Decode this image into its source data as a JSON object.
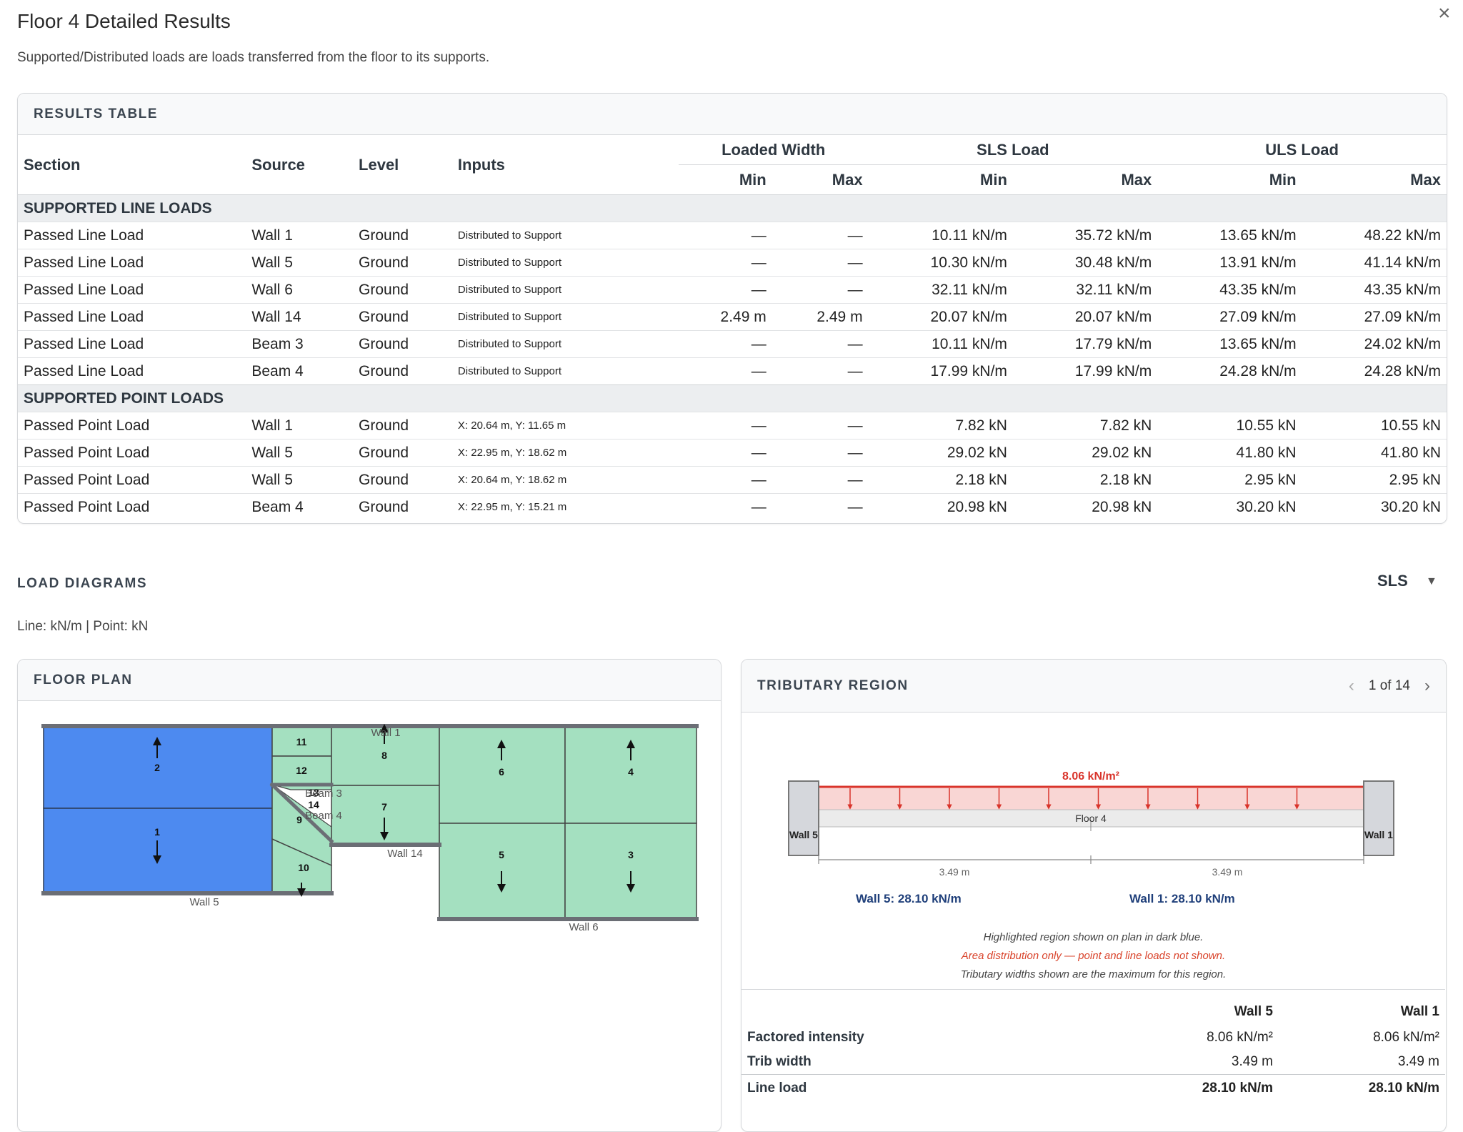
{
  "header": {
    "title": "Floor 4 Detailed Results",
    "close_glyph": "×",
    "subtitle": "Supported/Distributed loads are loads transferred from the floor to its supports."
  },
  "results": {
    "heading": "RESULTS TABLE",
    "columns": {
      "section": "Section",
      "source": "Source",
      "level": "Level",
      "inputs": "Inputs",
      "loaded_width": "Loaded Width",
      "sls_load": "SLS Load",
      "uls_load": "ULS Load",
      "min": "Min",
      "max": "Max"
    },
    "groups": [
      {
        "title": "SUPPORTED LINE LOADS",
        "rows": [
          [
            "Passed Line Load",
            "Wall 1",
            "Ground",
            "Distributed to Support",
            "—",
            "—",
            "10.11 kN/m",
            "35.72 kN/m",
            "13.65 kN/m",
            "48.22 kN/m"
          ],
          [
            "Passed Line Load",
            "Wall 5",
            "Ground",
            "Distributed to Support",
            "—",
            "—",
            "10.30 kN/m",
            "30.48 kN/m",
            "13.91 kN/m",
            "41.14 kN/m"
          ],
          [
            "Passed Line Load",
            "Wall 6",
            "Ground",
            "Distributed to Support",
            "—",
            "—",
            "32.11 kN/m",
            "32.11 kN/m",
            "43.35 kN/m",
            "43.35 kN/m"
          ],
          [
            "Passed Line Load",
            "Wall 14",
            "Ground",
            "Distributed to Support",
            "2.49 m",
            "2.49 m",
            "20.07 kN/m",
            "20.07 kN/m",
            "27.09 kN/m",
            "27.09 kN/m"
          ],
          [
            "Passed Line Load",
            "Beam 3",
            "Ground",
            "Distributed to Support",
            "—",
            "—",
            "10.11 kN/m",
            "17.79 kN/m",
            "13.65 kN/m",
            "24.02 kN/m"
          ],
          [
            "Passed Line Load",
            "Beam 4",
            "Ground",
            "Distributed to Support",
            "—",
            "—",
            "17.99 kN/m",
            "17.99 kN/m",
            "24.28 kN/m",
            "24.28 kN/m"
          ]
        ]
      },
      {
        "title": "SUPPORTED POINT LOADS",
        "rows": [
          [
            "Passed Point Load",
            "Wall 1",
            "Ground",
            "X: 20.64 m, Y: 11.65 m",
            "—",
            "—",
            "7.82 kN",
            "7.82 kN",
            "10.55 kN",
            "10.55 kN"
          ],
          [
            "Passed Point Load",
            "Wall 5",
            "Ground",
            "X: 22.95 m, Y: 18.62 m",
            "—",
            "—",
            "29.02 kN",
            "29.02 kN",
            "41.80 kN",
            "41.80 kN"
          ],
          [
            "Passed Point Load",
            "Wall 5",
            "Ground",
            "X: 20.64 m, Y: 18.62 m",
            "—",
            "—",
            "2.18 kN",
            "2.18 kN",
            "2.95 kN",
            "2.95 kN"
          ],
          [
            "Passed Point Load",
            "Beam 4",
            "Ground",
            "X: 22.95 m, Y: 15.21 m",
            "—",
            "—",
            "20.98 kN",
            "20.98 kN",
            "30.20 kN",
            "30.20 kN"
          ]
        ]
      }
    ]
  },
  "load_diagrams": {
    "heading": "LOAD DIAGRAMS",
    "units": "Line: kN/m | Point: kN",
    "selected_mode": "SLS"
  },
  "floor_plan": {
    "heading": "FLOOR PLAN",
    "colors": {
      "selected": "#4d8af0",
      "region": "#a4e0c0",
      "wall": "#6b6e75"
    },
    "region_labels": [
      "1",
      "2",
      "3",
      "4",
      "5",
      "6",
      "7",
      "8",
      "9",
      "10",
      "11",
      "12",
      "13",
      "14"
    ],
    "wall_labels": {
      "wall1": "Wall 1",
      "wall5": "Wall 5",
      "wall6": "Wall 6",
      "wall14": "Wall 14",
      "beam3": "Beam 3",
      "beam4": "Beam 4"
    }
  },
  "tributary": {
    "heading": "TRIBUTARY REGION",
    "pager": {
      "prev": "‹",
      "next": "›",
      "text": "1 of 14"
    },
    "diagram": {
      "intensity_label": "8.06 kN/m²",
      "floor_label": "Floor 4",
      "left_support": "Wall 5",
      "right_support": "Wall 1",
      "left_width": "3.49 m",
      "right_width": "3.49 m",
      "left_result": "Wall 5: 28.10 kN/m",
      "right_result": "Wall 1: 28.10 kN/m",
      "colors": {
        "load": "#d9342b",
        "load_fill": "#f9d6d4",
        "result": "#1f3f7a"
      }
    },
    "notes": [
      "Highlighted region shown on plan in dark blue.",
      "Area distribution only — point and line loads not shown.",
      "Tributary widths shown are the maximum for this region."
    ],
    "summary": {
      "col1": "Wall 5",
      "col2": "Wall 1",
      "rows": [
        {
          "label": "Factored intensity",
          "a": "8.06 kN/m²",
          "b": "8.06 kN/m²"
        },
        {
          "label": "Trib width",
          "a": "3.49 m",
          "b": "3.49 m"
        },
        {
          "label": "Line load",
          "a": "28.10 kN/m",
          "b": "28.10 kN/m"
        }
      ]
    }
  }
}
